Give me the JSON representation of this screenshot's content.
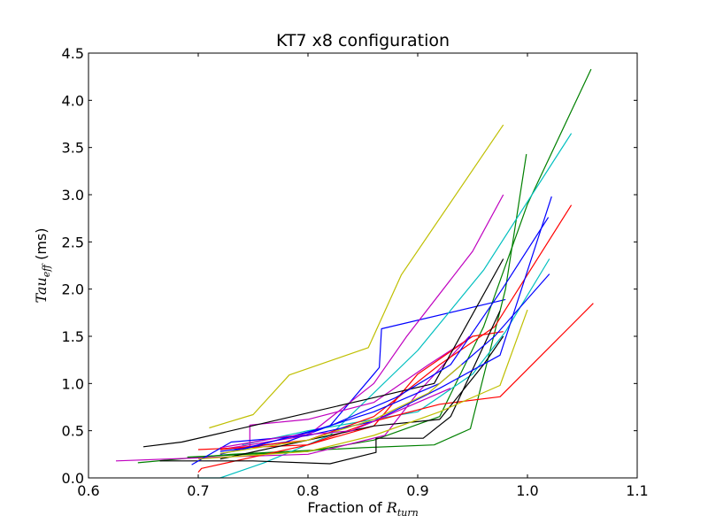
{
  "chart_data": {
    "type": "line",
    "title": "KT7 x8 configuration",
    "xlabel": {
      "prefix": "Fraction of ",
      "symbol": "R",
      "subscript": "turn"
    },
    "ylabel": {
      "symbol": "Tau",
      "subscript": "eff",
      "suffix": " (ms)"
    },
    "xlim": [
      0.6,
      1.1
    ],
    "ylim": [
      0.0,
      4.5
    ],
    "xticks": [
      "0.6",
      "0.7",
      "0.8",
      "0.9",
      "1.0",
      "1.1"
    ],
    "yticks": [
      "0.0",
      "0.5",
      "1.0",
      "1.5",
      "2.0",
      "2.5",
      "3.0",
      "3.5",
      "4.0",
      "4.5"
    ],
    "grid": false,
    "legend": "none",
    "series": [
      {
        "color": "#bfbf00",
        "points": [
          [
            0.71,
            0.53
          ],
          [
            0.75,
            0.67
          ],
          [
            0.783,
            1.09
          ],
          [
            0.855,
            1.38
          ],
          [
            0.885,
            2.15
          ],
          [
            0.978,
            3.74
          ]
        ]
      },
      {
        "color": "#0000ff",
        "points": [
          [
            0.72,
            0.28
          ],
          [
            0.78,
            0.38
          ],
          [
            0.82,
            0.55
          ],
          [
            0.86,
            1.1
          ],
          [
            0.865,
            1.17
          ],
          [
            0.867,
            1.58
          ],
          [
            0.98,
            1.89
          ]
        ]
      },
      {
        "color": "#008000",
        "points": [
          [
            0.645,
            0.16
          ],
          [
            0.73,
            0.25
          ],
          [
            0.85,
            0.32
          ],
          [
            0.915,
            0.35
          ],
          [
            0.948,
            0.52
          ],
          [
            0.98,
            2.0
          ],
          [
            0.999,
            3.43
          ]
        ]
      },
      {
        "color": "#008000",
        "points": [
          [
            0.69,
            0.22
          ],
          [
            0.8,
            0.28
          ],
          [
            0.86,
            0.4
          ],
          [
            0.92,
            0.65
          ],
          [
            0.96,
            1.6
          ],
          [
            1.0,
            2.9
          ],
          [
            1.058,
            4.33
          ]
        ]
      },
      {
        "color": "#00bfbf",
        "points": [
          [
            0.72,
            0.0
          ],
          [
            0.76,
            0.16
          ],
          [
            0.82,
            0.45
          ],
          [
            0.9,
            1.35
          ],
          [
            0.96,
            2.2
          ],
          [
            1.04,
            3.65
          ]
        ]
      },
      {
        "color": "#00bfbf",
        "points": [
          [
            0.7,
            0.0
          ],
          [
            0.72,
            0.0
          ]
        ]
      },
      {
        "color": "#00bfbf",
        "points": [
          [
            0.74,
            0.35
          ],
          [
            0.8,
            0.5
          ],
          [
            0.9,
            0.7
          ],
          [
            0.95,
            1.1
          ],
          [
            0.98,
            1.55
          ],
          [
            1.02,
            2.32
          ]
        ]
      },
      {
        "color": "#bf00bf",
        "points": [
          [
            0.625,
            0.18
          ],
          [
            0.72,
            0.22
          ],
          [
            0.8,
            0.25
          ],
          [
            0.87,
            0.45
          ],
          [
            0.9,
            0.9
          ],
          [
            0.947,
            1.5
          ]
        ]
      },
      {
        "color": "#bf00bf",
        "points": [
          [
            0.72,
            0.3
          ],
          [
            0.8,
            0.45
          ],
          [
            0.86,
            1.0
          ],
          [
            0.89,
            1.5
          ],
          [
            0.95,
            2.4
          ],
          [
            0.978,
            3.0
          ]
        ]
      },
      {
        "color": "#bf00bf",
        "points": [
          [
            0.747,
            0.32
          ],
          [
            0.747,
            0.56
          ],
          [
            0.8,
            0.62
          ],
          [
            0.86,
            0.8
          ],
          [
            0.91,
            1.2
          ],
          [
            0.95,
            1.5
          ]
        ]
      },
      {
        "color": "#ff0000",
        "points": [
          [
            0.7,
            0.06
          ],
          [
            0.703,
            0.1
          ],
          [
            0.8,
            0.35
          ],
          [
            0.86,
            0.6
          ],
          [
            0.92,
            0.78
          ],
          [
            0.975,
            0.86
          ],
          [
            1.06,
            1.85
          ]
        ]
      },
      {
        "color": "#ff0000",
        "points": [
          [
            0.72,
            0.3
          ],
          [
            0.8,
            0.4
          ],
          [
            0.86,
            0.65
          ],
          [
            0.92,
            1.2
          ],
          [
            0.97,
            1.6
          ],
          [
            1.04,
            2.89
          ]
        ]
      },
      {
        "color": "#ff0000",
        "points": [
          [
            0.7,
            0.3
          ],
          [
            0.8,
            0.35
          ],
          [
            0.86,
            0.55
          ],
          [
            0.9,
            1.1
          ],
          [
            0.95,
            1.5
          ],
          [
            0.978,
            1.55
          ]
        ]
      },
      {
        "color": "#000000",
        "points": [
          [
            0.65,
            0.33
          ],
          [
            0.685,
            0.38
          ],
          [
            0.76,
            0.58
          ],
          [
            0.86,
            0.85
          ],
          [
            0.915,
            1.0
          ],
          [
            0.978,
            2.32
          ]
        ]
      },
      {
        "color": "#000000",
        "points": [
          [
            0.665,
            0.18
          ],
          [
            0.75,
            0.18
          ],
          [
            0.82,
            0.15
          ],
          [
            0.862,
            0.27
          ],
          [
            0.862,
            0.42
          ],
          [
            0.905,
            0.42
          ],
          [
            0.93,
            0.65
          ],
          [
            0.975,
            1.77
          ]
        ]
      },
      {
        "color": "#000000",
        "points": [
          [
            0.72,
            0.2
          ],
          [
            0.8,
            0.4
          ],
          [
            0.86,
            0.55
          ],
          [
            0.92,
            0.62
          ],
          [
            0.96,
            1.2
          ],
          [
            0.978,
            1.5
          ]
        ]
      },
      {
        "color": "#0000ff",
        "points": [
          [
            0.694,
            0.14
          ],
          [
            0.73,
            0.38
          ],
          [
            0.8,
            0.45
          ],
          [
            0.86,
            0.6
          ],
          [
            0.92,
            0.95
          ],
          [
            0.975,
            1.3
          ],
          [
            1.022,
            2.98
          ]
        ]
      },
      {
        "color": "#0000ff",
        "points": [
          [
            0.72,
            0.25
          ],
          [
            0.8,
            0.48
          ],
          [
            0.86,
            0.7
          ],
          [
            0.92,
            1.0
          ],
          [
            0.97,
            1.5
          ],
          [
            1.02,
            2.16
          ]
        ]
      },
      {
        "color": "#0000ff",
        "points": [
          [
            0.74,
            0.3
          ],
          [
            0.82,
            0.55
          ],
          [
            0.88,
            0.85
          ],
          [
            0.93,
            1.2
          ],
          [
            0.977,
            2.0
          ],
          [
            1.019,
            2.76
          ]
        ]
      },
      {
        "color": "#bfbf00",
        "points": [
          [
            0.7,
            0.2
          ],
          [
            0.8,
            0.28
          ],
          [
            0.86,
            0.45
          ],
          [
            0.92,
            0.7
          ],
          [
            0.975,
            0.98
          ],
          [
            1.0,
            1.78
          ]
        ]
      },
      {
        "color": "#bfbf00",
        "points": [
          [
            0.72,
            0.26
          ],
          [
            0.8,
            0.4
          ],
          [
            0.86,
            0.62
          ],
          [
            0.91,
            0.9
          ],
          [
            0.94,
            1.2
          ]
        ]
      },
      {
        "color": "#bf00bf",
        "points": [
          [
            0.72,
            0.32
          ],
          [
            0.78,
            0.44
          ],
          [
            0.84,
            0.5
          ],
          [
            0.9,
            0.8
          ],
          [
            0.93,
            0.95
          ]
        ]
      }
    ]
  }
}
